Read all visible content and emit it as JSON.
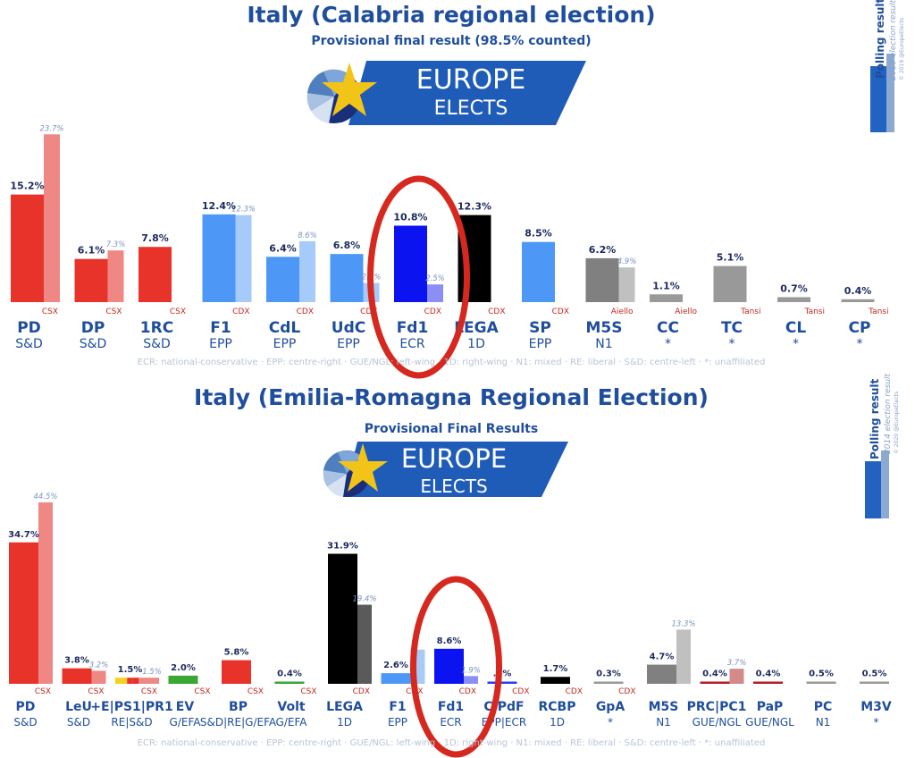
{
  "colors": {
    "brand_blue": "#1f4e9c",
    "banner_blue": "#1f5cb8",
    "star_yellow": "#f2c417",
    "highlight_red": "#d6281e",
    "polling_blue_dark": "#2262c0",
    "polling_blue_light": "#8ba9d3"
  },
  "banner": {
    "line1": "EUROPE",
    "line2": "ELECTS"
  },
  "icons": [
    "pie-logo-icon",
    "star-icon",
    "polling-result-legend-icon"
  ],
  "chart_data": [
    {
      "type": "bar",
      "title": "Italy (Calabria regional election)",
      "subtitle": "Provisional final result (98.5% counted)",
      "legend": {
        "title": "Polling result",
        "subtitle": "2018 election result",
        "credit": "© 2019 @EuropeElects",
        "placement": "top-right"
      },
      "ylim": [
        0,
        25
      ],
      "grid": false,
      "categories": [
        {
          "party": "PD",
          "group": "S&D",
          "coalition": "CSX",
          "value": 15.2,
          "value_label": "15.2%",
          "prev": 23.7,
          "prev_label": "23.7%",
          "color": "#e8332a",
          "prev_color": "#ef8784"
        },
        {
          "party": "DP",
          "group": "S&D",
          "coalition": "CSX",
          "value": 6.1,
          "value_label": "6.1%",
          "prev": 7.3,
          "prev_label": "7.3%",
          "color": "#e8332a",
          "prev_color": "#ef8784"
        },
        {
          "party": "1RC",
          "group": "S&D",
          "coalition": "CSX",
          "value": 7.8,
          "value_label": "7.8%",
          "prev": null,
          "prev_label": "",
          "color": "#e8332a",
          "prev_color": "#ef8784"
        },
        {
          "party": "F1",
          "group": "EPP",
          "coalition": "CDX",
          "value": 12.4,
          "value_label": "12.4%",
          "prev": 12.3,
          "prev_label": "12.3%",
          "color": "#4d97f7",
          "prev_color": "#a6cbfb"
        },
        {
          "party": "CdL",
          "group": "EPP",
          "coalition": "CDX",
          "value": 6.4,
          "value_label": "6.4%",
          "prev": 8.6,
          "prev_label": "8.6%",
          "color": "#4d97f7",
          "prev_color": "#a6cbfb"
        },
        {
          "party": "UdC",
          "group": "EPP",
          "coalition": "CDX",
          "value": 6.8,
          "value_label": "6.8%",
          "prev": 2.7,
          "prev_label": "2.7%",
          "color": "#4d97f7",
          "prev_color": "#a6cbfb"
        },
        {
          "party": "Fd1",
          "group": "ECR",
          "coalition": "CDX",
          "value": 10.8,
          "value_label": "10.8%",
          "prev": 2.5,
          "prev_label": "2.5%",
          "color": "#0a13f0",
          "prev_color": "#8b8ff5"
        },
        {
          "party": "LEGA",
          "group": "1D",
          "coalition": "CDX",
          "value": 12.3,
          "value_label": "12.3%",
          "prev": null,
          "prev_label": "",
          "color": "#000000",
          "prev_color": "#808080"
        },
        {
          "party": "SP",
          "group": "EPP",
          "coalition": "CDX",
          "value": 8.5,
          "value_label": "8.5%",
          "prev": null,
          "prev_label": "",
          "color": "#4d97f7",
          "prev_color": "#a6cbfb"
        },
        {
          "party": "M5S",
          "group": "N1",
          "coalition": "Aiello",
          "value": 6.2,
          "value_label": "6.2%",
          "prev": 4.9,
          "prev_label": "4.9%",
          "color": "#808080",
          "prev_color": "#c0c0c0"
        },
        {
          "party": "CC",
          "group": "*",
          "coalition": "Aiello",
          "value": 1.1,
          "value_label": "1.1%",
          "prev": null,
          "prev_label": "",
          "color": "#999999",
          "prev_color": "#cccccc"
        },
        {
          "party": "TC",
          "group": "*",
          "coalition": "Tansi",
          "value": 5.1,
          "value_label": "5.1%",
          "prev": null,
          "prev_label": "",
          "color": "#999999",
          "prev_color": "#cccccc"
        },
        {
          "party": "CL",
          "group": "*",
          "coalition": "Tansi",
          "value": 0.7,
          "value_label": "0.7%",
          "prev": null,
          "prev_label": "",
          "color": "#999999",
          "prev_color": "#cccccc"
        },
        {
          "party": "CP",
          "group": "*",
          "coalition": "Tansi",
          "value": 0.4,
          "value_label": "0.4%",
          "prev": null,
          "prev_label": "",
          "color": "#999999",
          "prev_color": "#cccccc"
        }
      ],
      "annotation": "Fd1",
      "footnote": "ECR: national-conservative · EPP: centre-right · GUE/NGL: left-wing · 1D: right-wing · N1: mixed · RE: liberal · S&D: centre-left · *: unaffiliated"
    },
    {
      "type": "bar",
      "title": "Italy (Emilia-Romagna Regional Election)",
      "subtitle": "Provisional Final Results",
      "legend": {
        "title": "Polling result",
        "subtitle": "2014 election result",
        "credit": "© 2020 @EuropeElects",
        "placement": "top-right"
      },
      "ylim": [
        0,
        50
      ],
      "grid": false,
      "categories": [
        {
          "party": "PD",
          "group": "S&D",
          "coalition": "CSX",
          "value": 34.7,
          "value_label": "34.7%",
          "prev": 44.5,
          "prev_label": "44.5%",
          "color": "#e8332a",
          "prev_color": "#ef8784"
        },
        {
          "party": "LeU",
          "group": "S&D",
          "coalition": "CSX",
          "value": 3.8,
          "value_label": "3.8%",
          "prev": 3.2,
          "prev_label": "3.2%",
          "color": "#e8332a",
          "prev_color": "#ef8784"
        },
        {
          "party": "+E|PS1|PR1",
          "group": "RE|S&D",
          "coalition": "CSX",
          "value": 1.5,
          "value_label": "1.5%",
          "prev": 1.5,
          "prev_label": "1.5%",
          "color": "#e8332a",
          "prev_color": "#ef8784",
          "stripes": [
            "#f2d21f",
            "#f2d21f",
            "#e8332a",
            "#e8332a",
            "#ef8784"
          ]
        },
        {
          "party": "EV",
          "group": "G/EFA",
          "coalition": "CSX",
          "value": 2.0,
          "value_label": "2.0%",
          "prev": null,
          "prev_label": "",
          "color": "#3aa634",
          "prev_color": "#9fd29c"
        },
        {
          "party": "BP",
          "group": "S&D|RE|G/EFA",
          "coalition": "CSX",
          "value": 5.8,
          "value_label": "5.8%",
          "prev": null,
          "prev_label": "",
          "color": "#e8332a",
          "prev_color": "#ef8784"
        },
        {
          "party": "Volt",
          "group": "G/EFA",
          "coalition": "CSX",
          "value": 0.4,
          "value_label": "0.4%",
          "prev": null,
          "prev_label": "",
          "color": "#3aa634",
          "prev_color": "#9fd29c"
        },
        {
          "party": "LEGA",
          "group": "1D",
          "coalition": "CDX",
          "value": 31.9,
          "value_label": "31.9%",
          "prev": 19.4,
          "prev_label": "19.4%",
          "color": "#000000",
          "prev_color": "#5a5a5a"
        },
        {
          "party": "F1",
          "group": "EPP",
          "coalition": "CDX",
          "value": 2.6,
          "value_label": "2.6%",
          "prev": 8.4,
          "prev_label": "",
          "color": "#4d97f7",
          "prev_color": "#a6cbfb"
        },
        {
          "party": "Fd1",
          "group": "ECR",
          "coalition": "CDX",
          "value": 8.6,
          "value_label": "8.6%",
          "prev": 1.9,
          "prev_label": "1.9%",
          "color": "#0a13f0",
          "prev_color": "#8b8ff5"
        },
        {
          "party": "C|PdF",
          "group": "EPP|ECR",
          "coalition": "CDX",
          "value": 0.3,
          "value_label": ".3%",
          "prev": null,
          "prev_label": "",
          "color": "#2a3cf0",
          "prev_color": "#a6cbfb"
        },
        {
          "party": "RCBP",
          "group": "1D",
          "coalition": "CDX",
          "value": 1.7,
          "value_label": "1.7%",
          "prev": null,
          "prev_label": "",
          "color": "#000000",
          "prev_color": "#808080"
        },
        {
          "party": "GpA",
          "group": "*",
          "coalition": "CDX",
          "value": 0.3,
          "value_label": "0.3%",
          "prev": null,
          "prev_label": "",
          "color": "#999999",
          "prev_color": "#cccccc"
        },
        {
          "party": "M5S",
          "group": "N1",
          "coalition": "",
          "value": 4.7,
          "value_label": "4.7%",
          "prev": 13.3,
          "prev_label": "13.3%",
          "color": "#808080",
          "prev_color": "#c0c0c0"
        },
        {
          "party": "PRC|PC1",
          "group": "GUE/NGL",
          "coalition": "",
          "value": 0.4,
          "value_label": "0.4%",
          "prev": 3.7,
          "prev_label": "3.7%",
          "color": "#b21f24",
          "prev_color": "#d58a8a"
        },
        {
          "party": "PaP",
          "group": "GUE/NGL",
          "coalition": "",
          "value": 0.4,
          "value_label": "0.4%",
          "prev": null,
          "prev_label": "",
          "color": "#b21f24",
          "prev_color": "#d58a8a"
        },
        {
          "party": "PC",
          "group": "N1",
          "coalition": "",
          "value": 0.5,
          "value_label": "0.5%",
          "prev": null,
          "prev_label": "",
          "color": "#999999",
          "prev_color": "#cccccc"
        },
        {
          "party": "M3V",
          "group": "*",
          "coalition": "",
          "value": 0.5,
          "value_label": "0.5%",
          "prev": null,
          "prev_label": "",
          "color": "#999999",
          "prev_color": "#cccccc"
        }
      ],
      "annotation": "Fd1",
      "footnote": "ECR: national-conservative · EPP: centre-right · GUE/NGL: left-wing · 1D: right-wing · N1: mixed · RE: liberal · S&D: centre-left · *: unaffiliated"
    }
  ]
}
